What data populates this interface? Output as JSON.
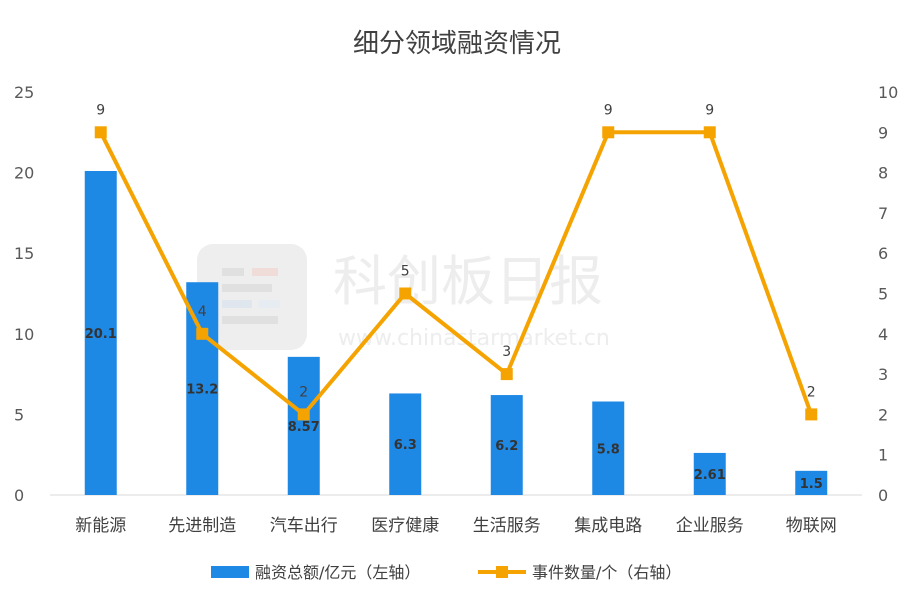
{
  "chart_data": {
    "type": "bar",
    "title": "细分领域融资情况",
    "categories": [
      "新能源",
      "先进制造",
      "汽车出行",
      "医疗健康",
      "生活服务",
      "集成电路",
      "企业服务",
      "物联网"
    ],
    "series": [
      {
        "name": "融资总额/亿元（左轴）",
        "type": "bar",
        "axis": "left",
        "values": [
          20.1,
          13.2,
          8.57,
          6.3,
          6.2,
          5.8,
          2.61,
          1.5
        ],
        "labels": [
          "20.1",
          "13.2",
          "8.57",
          "6.3",
          "6.2",
          "5.8",
          "2.61",
          "1.5"
        ],
        "color": "#1e88e5"
      },
      {
        "name": "事件数量/个（右轴）",
        "type": "line",
        "axis": "right",
        "values": [
          9,
          4,
          2,
          5,
          3,
          9,
          9,
          2
        ],
        "labels": [
          "9",
          "4",
          "2",
          "5",
          "3",
          "9",
          "9",
          "2"
        ],
        "color": "#f5a300"
      }
    ],
    "y_left": {
      "min": 0,
      "max": 25,
      "ticks": [
        "0",
        "5",
        "10",
        "15",
        "20",
        "25"
      ]
    },
    "y_right": {
      "min": 0,
      "max": 10,
      "ticks": [
        "0",
        "1",
        "2",
        "3",
        "4",
        "5",
        "6",
        "7",
        "8",
        "9",
        "10"
      ]
    },
    "grid": false,
    "legend_position": "bottom"
  },
  "watermark": {
    "text": "科创板日报",
    "url": "www.chinastarmarket.cn"
  }
}
